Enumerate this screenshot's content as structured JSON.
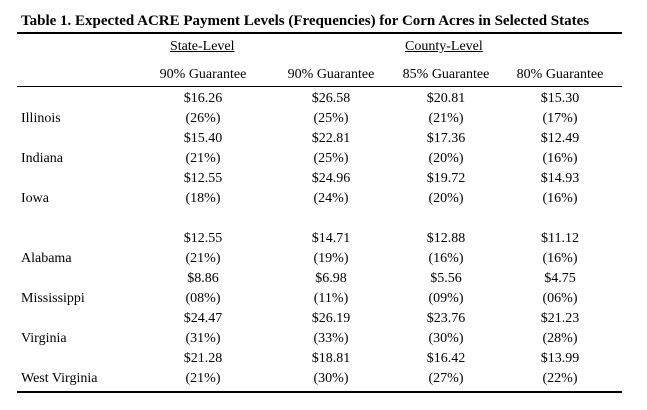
{
  "title": "Table 1. Expected ACRE Payment Levels (Frequencies) for Corn Acres in Selected States",
  "groups": {
    "state_level": "State-Level",
    "county_level": "County-Level"
  },
  "headers": [
    "90% Guarantee",
    "90% Guarantee",
    "85% Guarantee",
    "80% Guarantee"
  ],
  "rows": [
    {
      "state": "Illinois",
      "payments": [
        "$16.26",
        "$26.58",
        "$20.81",
        "$15.30"
      ],
      "freq": [
        "(26%)",
        "(25%)",
        "(21%)",
        "(17%)"
      ]
    },
    {
      "state": "Indiana",
      "payments": [
        "$15.40",
        "$22.81",
        "$17.36",
        "$12.49"
      ],
      "freq": [
        "(21%)",
        "(25%)",
        "(20%)",
        "(16%)"
      ]
    },
    {
      "state": "Iowa",
      "payments": [
        "$12.55",
        "$24.96",
        "$19.72",
        "$14.93"
      ],
      "freq": [
        "(18%)",
        "(24%)",
        "(20%)",
        "(16%)"
      ]
    },
    {
      "state": "Alabama",
      "payments": [
        "$12.55",
        "$14.71",
        "$12.88",
        "$11.12"
      ],
      "freq": [
        "(21%)",
        "(19%)",
        "(16%)",
        "(16%)"
      ]
    },
    {
      "state": "Mississippi",
      "payments": [
        "$8.86",
        "$6.98",
        "$5.56",
        "$4.75"
      ],
      "freq": [
        "(08%)",
        "(11%)",
        "(09%)",
        "(06%)"
      ]
    },
    {
      "state": "Virginia",
      "payments": [
        "$24.47",
        "$26.19",
        "$23.76",
        "$21.23"
      ],
      "freq": [
        "(31%)",
        "(33%)",
        "(30%)",
        "(28%)"
      ]
    },
    {
      "state": "West Virginia",
      "payments": [
        "$21.28",
        "$18.81",
        "$16.42",
        "$13.99"
      ],
      "freq": [
        "(21%)",
        "(30%)",
        "(27%)",
        "(22%)"
      ]
    }
  ]
}
